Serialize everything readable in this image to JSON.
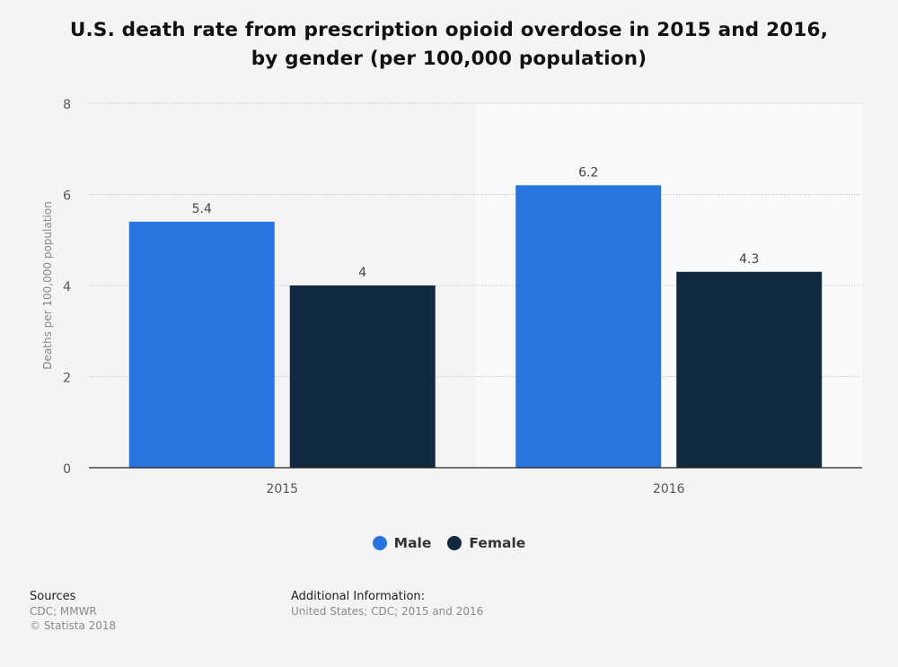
{
  "chart_data": {
    "type": "bar",
    "title_lines": [
      "U.S. death rate from prescription opioid overdose in 2015 and 2016,",
      "by gender (per 100,000 population)"
    ],
    "categories": [
      "2015",
      "2016"
    ],
    "series": [
      {
        "name": "Male",
        "color": "#2876dd",
        "values": [
          5.4,
          6.2
        ],
        "labels": [
          "5.4",
          "6.2"
        ]
      },
      {
        "name": "Female",
        "color": "#122a40",
        "values": [
          4,
          4.3
        ],
        "labels": [
          "4",
          "4.3"
        ]
      }
    ],
    "xlabel": "",
    "ylabel": "Deaths per 100,000 population",
    "ylim": [
      0,
      8
    ],
    "yticks": [
      0,
      2,
      4,
      6,
      8
    ],
    "grid": true,
    "legend_position": "bottom-center",
    "highlighted_category": "2016"
  },
  "footer": {
    "sources_heading": "Sources",
    "sources_text": "CDC; MMWR",
    "copyright": "© Statista 2018",
    "additional_heading": "Additional Information:",
    "additional_text": "United States; CDC; 2015 and 2016"
  }
}
